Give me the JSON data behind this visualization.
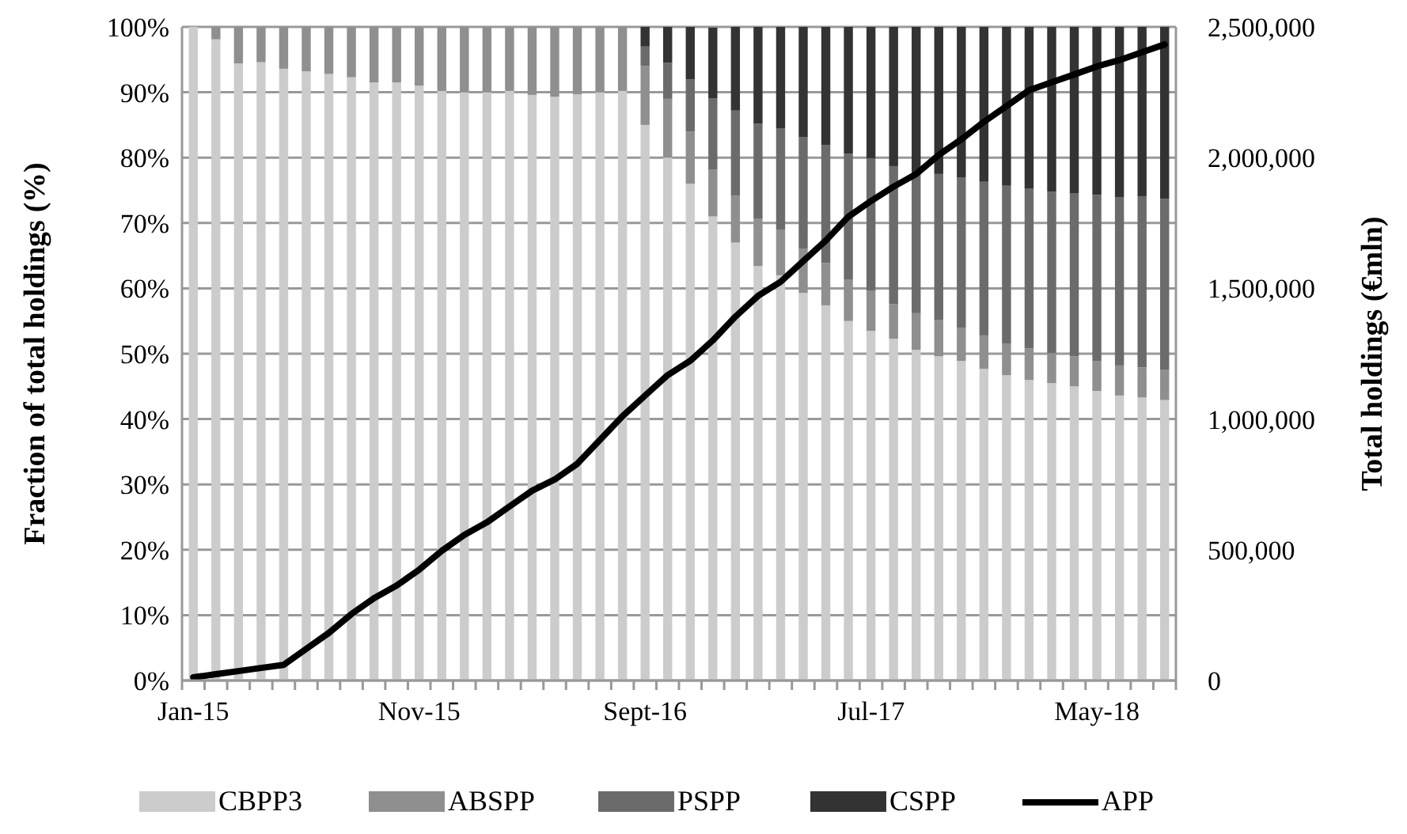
{
  "chart_data": {
    "type": "bar",
    "stacked": true,
    "ylabel": "Fraction of total holdings (%)",
    "y2label": "Total holdings (€mln)",
    "categories": [
      "Jan-15",
      null,
      null,
      null,
      null,
      null,
      null,
      null,
      null,
      null,
      "Nov-15",
      null,
      null,
      null,
      null,
      null,
      null,
      null,
      null,
      null,
      "Sept-16",
      null,
      null,
      null,
      null,
      null,
      null,
      null,
      null,
      null,
      "Jul-17",
      null,
      null,
      null,
      null,
      null,
      null,
      null,
      null,
      null,
      "May-18",
      null,
      null,
      null
    ],
    "ylim": [
      0,
      100
    ],
    "yticks": [
      {
        "value": 0,
        "label": "0%"
      },
      {
        "value": 10,
        "label": "10%"
      },
      {
        "value": 20,
        "label": "20%"
      },
      {
        "value": 30,
        "label": "30%"
      },
      {
        "value": 40,
        "label": "40%"
      },
      {
        "value": 50,
        "label": "50%"
      },
      {
        "value": 60,
        "label": "60%"
      },
      {
        "value": 70,
        "label": "70%"
      },
      {
        "value": 80,
        "label": "80%"
      },
      {
        "value": 90,
        "label": "90%"
      },
      {
        "value": 100,
        "label": "100%"
      }
    ],
    "y2lim": [
      0,
      2500000
    ],
    "y2ticks": [
      {
        "value": 0,
        "label": "0"
      },
      {
        "value": 500000,
        "label": "500,000"
      },
      {
        "value": 1000000,
        "label": "1,000,000"
      },
      {
        "value": 1500000,
        "label": "1,500,000"
      },
      {
        "value": 2000000,
        "label": "2,000,000"
      },
      {
        "value": 2500000,
        "label": "2,500,000"
      }
    ],
    "grid": "y",
    "legend": "bottom",
    "series": [
      {
        "name": "CBPP3",
        "color": "#cccccc",
        "values": [
          100,
          98.1,
          94.4,
          94.6,
          93.6,
          93.2,
          92.8,
          92.3,
          91.5,
          91.5,
          91.0,
          90.2,
          90.0,
          90.0,
          90.2,
          89.6,
          89.3,
          89.7,
          90.0,
          90.2,
          85.0,
          80.0,
          76.0,
          71.0,
          67.0,
          63.4,
          62.0,
          59.3,
          57.4,
          55.0,
          53.5,
          52.3,
          50.6,
          49.6,
          48.9,
          47.7,
          46.7,
          46.0,
          45.5,
          45.0,
          44.3,
          43.6,
          43.3,
          42.9
        ]
      },
      {
        "name": "ABSPP",
        "color": "#8f8f8f",
        "values": [
          0,
          1.9,
          5.6,
          5.4,
          6.4,
          6.8,
          7.2,
          7.7,
          8.5,
          8.5,
          9.0,
          9.8,
          10.0,
          10.0,
          9.8,
          10.4,
          10.7,
          10.3,
          10.0,
          9.8,
          9.0,
          9.0,
          8.0,
          7.2,
          7.2,
          7.3,
          7.0,
          6.8,
          6.5,
          6.3,
          6.1,
          5.3,
          5.6,
          5.6,
          5.1,
          5.1,
          4.8,
          4.8,
          4.6,
          4.6,
          4.6,
          4.6,
          4.6,
          4.6
        ]
      },
      {
        "name": "PSPP",
        "color": "#6b6b6b",
        "values": [
          0,
          0,
          0,
          0,
          0,
          0,
          0,
          0,
          0,
          0,
          0,
          0,
          0,
          0,
          0,
          0,
          0,
          0,
          0,
          0,
          3.0,
          5.5,
          8.0,
          10.9,
          13.0,
          14.5,
          15.5,
          17.0,
          18.0,
          19.3,
          20.3,
          21.1,
          21.2,
          22.3,
          23.0,
          23.5,
          24.2,
          24.5,
          24.7,
          24.9,
          25.4,
          25.7,
          26.2,
          26.2
        ]
      },
      {
        "name": "CSPP",
        "color": "#333333",
        "values": [
          0,
          0,
          0,
          0,
          0,
          0,
          0,
          0,
          0,
          0,
          0,
          0,
          0,
          0,
          0,
          0,
          0,
          0,
          0,
          0,
          3.0,
          5.5,
          8.0,
          10.8,
          12.8,
          14.8,
          15.5,
          16.9,
          18.1,
          19.4,
          20.1,
          21.3,
          22.6,
          22.5,
          23.0,
          23.7,
          24.3,
          24.7,
          25.2,
          25.5,
          25.7,
          26.1,
          25.9,
          26.3
        ]
      },
      {
        "name": "APP",
        "type": "line",
        "axis": "y2",
        "color": "#000000",
        "values": [
          12000,
          24000,
          36000,
          48000,
          60000,
          121000,
          182000,
          254000,
          315000,
          363000,
          424000,
          496000,
          557000,
          605000,
          666000,
          726000,
          769000,
          829000,
          920000,
          1011000,
          1090000,
          1168000,
          1223000,
          1301000,
          1392000,
          1471000,
          1525000,
          1604000,
          1683000,
          1774000,
          1834000,
          1889000,
          1937000,
          2010000,
          2070000,
          2137000,
          2197000,
          2258000,
          2288000,
          2318000,
          2349000,
          2373000,
          2403000,
          2433000
        ]
      }
    ]
  }
}
